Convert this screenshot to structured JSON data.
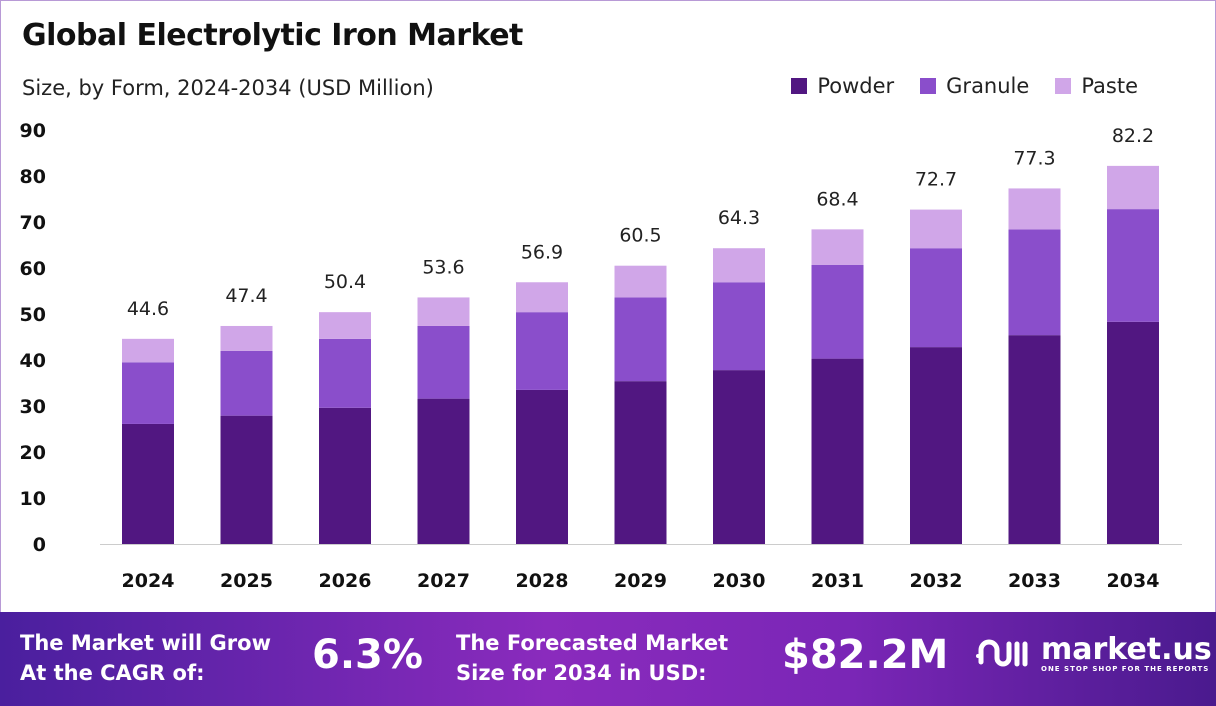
{
  "chart_data": {
    "type": "bar",
    "stacked": true,
    "title": "Global Electrolytic Iron Market",
    "subtitle": "Size, by Form, 2024-2034 (USD Million)",
    "categories": [
      "2024",
      "2025",
      "2026",
      "2027",
      "2028",
      "2029",
      "2030",
      "2031",
      "2032",
      "2033",
      "2034"
    ],
    "series": [
      {
        "name": "Powder",
        "color": "#511781",
        "values": [
          26.1,
          27.9,
          29.6,
          31.6,
          33.5,
          35.4,
          37.8,
          40.3,
          42.8,
          45.4,
          48.3
        ]
      },
      {
        "name": "Granule",
        "color": "#8a4ecb",
        "values": [
          13.4,
          14.1,
          15.0,
          15.8,
          16.9,
          18.2,
          19.1,
          20.4,
          21.5,
          23.0,
          24.5
        ]
      },
      {
        "name": "Paste",
        "color": "#d0a6e8",
        "values": [
          5.1,
          5.4,
          5.8,
          6.2,
          6.5,
          6.9,
          7.4,
          7.7,
          8.4,
          8.9,
          9.4
        ]
      }
    ],
    "totals": [
      "44.6",
      "47.4",
      "50.4",
      "53.6",
      "56.9",
      "60.5",
      "64.3",
      "68.4",
      "72.7",
      "77.3",
      "82.2"
    ],
    "yticks": [
      "0",
      "10",
      "20",
      "30",
      "40",
      "50",
      "60",
      "70",
      "80",
      "90"
    ],
    "ylim": [
      0,
      90
    ],
    "grid": false,
    "legend": "top-right"
  },
  "footer": {
    "cagr_label_1": "The Market will Grow",
    "cagr_label_2": "At the CAGR of:",
    "cagr_value": "6.3%",
    "forecast_label_1": "The Forecasted Market",
    "forecast_label_2": "Size for 2034 in USD:",
    "forecast_value": "$82.2M",
    "logo_name": "market.us",
    "logo_tagline": "ONE STOP SHOP FOR THE REPORTS"
  }
}
